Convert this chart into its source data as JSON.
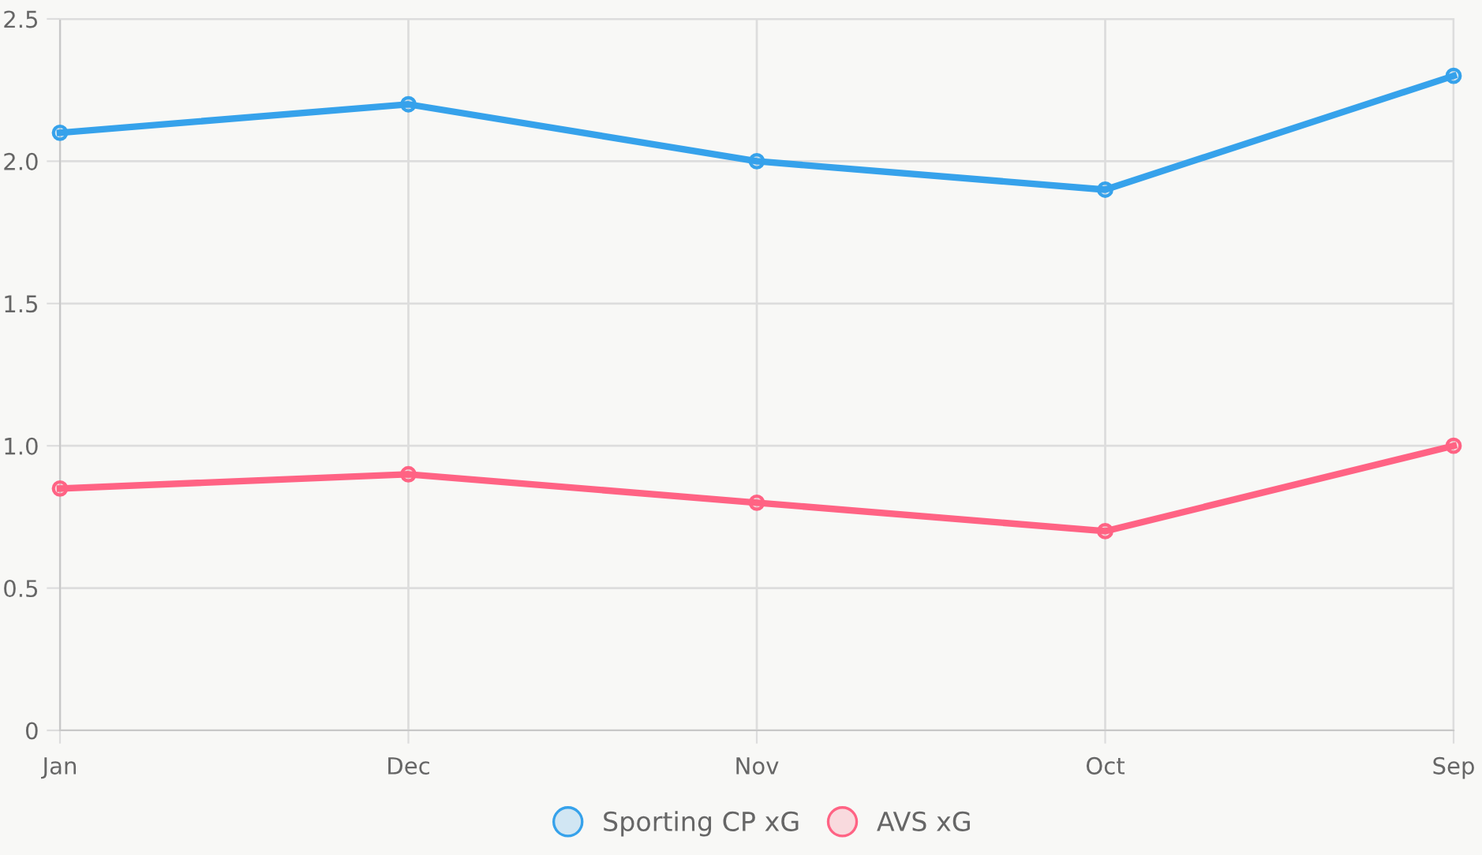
{
  "chart_data": {
    "type": "line",
    "categories": [
      "Jan",
      "Dec",
      "Nov",
      "Oct",
      "Sep"
    ],
    "series": [
      {
        "name": "Sporting CP xG",
        "color": "#36a2eb",
        "values": [
          2.1,
          2.2,
          2.0,
          1.9,
          2.3
        ]
      },
      {
        "name": "AVS xG",
        "color": "#ff6384",
        "values": [
          0.85,
          0.9,
          0.8,
          0.7,
          1.0
        ]
      }
    ],
    "ylim": [
      0,
      2.5
    ],
    "yticks": [
      {
        "value": 0,
        "label": "0"
      },
      {
        "value": 0.5,
        "label": "0.5"
      },
      {
        "value": 1,
        "label": "1.0"
      },
      {
        "value": 1.5,
        "label": "1.5"
      },
      {
        "value": 2,
        "label": "2.0"
      },
      {
        "value": 2.5,
        "label": "2.5"
      }
    ],
    "grid": true,
    "legend": "bottom",
    "marker": "circle",
    "line_style": "solid"
  }
}
